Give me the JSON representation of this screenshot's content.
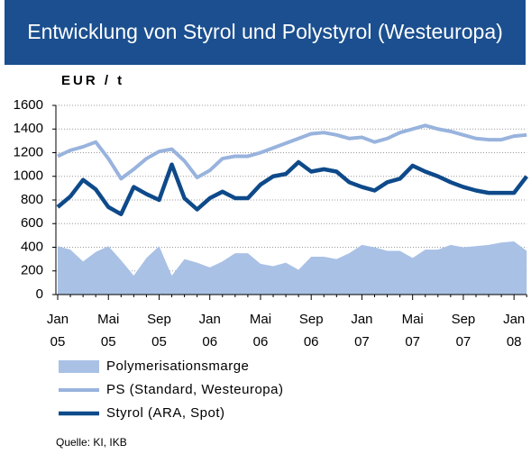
{
  "chart_data": {
    "type": "line",
    "title": "Entwicklung von Styrol und Polystyrol (Westeuropa)",
    "y_label": "EUR / t",
    "source": "Quelle: KI, IKB",
    "categories": [
      "Jan 05",
      null,
      null,
      null,
      "Mai 05",
      null,
      null,
      null,
      "Sep 05",
      null,
      null,
      null,
      "Jan 06",
      null,
      null,
      null,
      "Mai 06",
      null,
      null,
      null,
      "Sep 06",
      null,
      null,
      null,
      "Jan 07",
      null,
      null,
      null,
      "Mai 07",
      null,
      null,
      null,
      "Sep 07",
      null,
      null,
      null,
      "Jan 08",
      null
    ],
    "series": [
      {
        "name": "Polymerisationsmarge",
        "kind": "area",
        "color": "#a9c1e5",
        "values": [
          410,
          380,
          280,
          360,
          410,
          290,
          160,
          310,
          410,
          160,
          300,
          270,
          230,
          280,
          350,
          350,
          260,
          240,
          270,
          210,
          320,
          320,
          300,
          350,
          420,
          400,
          370,
          370,
          310,
          380,
          380,
          420,
          400,
          410,
          420,
          440,
          450,
          370
        ]
      },
      {
        "name": "PS (Standard, Westeuropa)",
        "kind": "line",
        "color": "#98b3dd",
        "values": [
          1170,
          1220,
          1250,
          1290,
          1150,
          980,
          1060,
          1150,
          1210,
          1230,
          1130,
          990,
          1050,
          1150,
          1170,
          1170,
          1200,
          1240,
          1280,
          1320,
          1360,
          1370,
          1350,
          1320,
          1330,
          1290,
          1320,
          1370,
          1400,
          1430,
          1400,
          1380,
          1350,
          1320,
          1310,
          1310,
          1340,
          1350
        ]
      },
      {
        "name": "Styrol (ARA, Spot)",
        "kind": "line",
        "color": "#0e4a8a",
        "values": [
          740,
          830,
          970,
          890,
          740,
          680,
          910,
          850,
          800,
          1100,
          815,
          720,
          815,
          870,
          815,
          815,
          930,
          1000,
          1020,
          1120,
          1040,
          1060,
          1040,
          950,
          910,
          880,
          950,
          980,
          1090,
          1040,
          1000,
          950,
          910,
          880,
          860,
          860,
          860,
          1000
        ]
      }
    ],
    "ylim": [
      0,
      1600
    ],
    "yticks": [
      0,
      200,
      400,
      600,
      800,
      1000,
      1200,
      1400,
      1600
    ],
    "grid": true
  }
}
